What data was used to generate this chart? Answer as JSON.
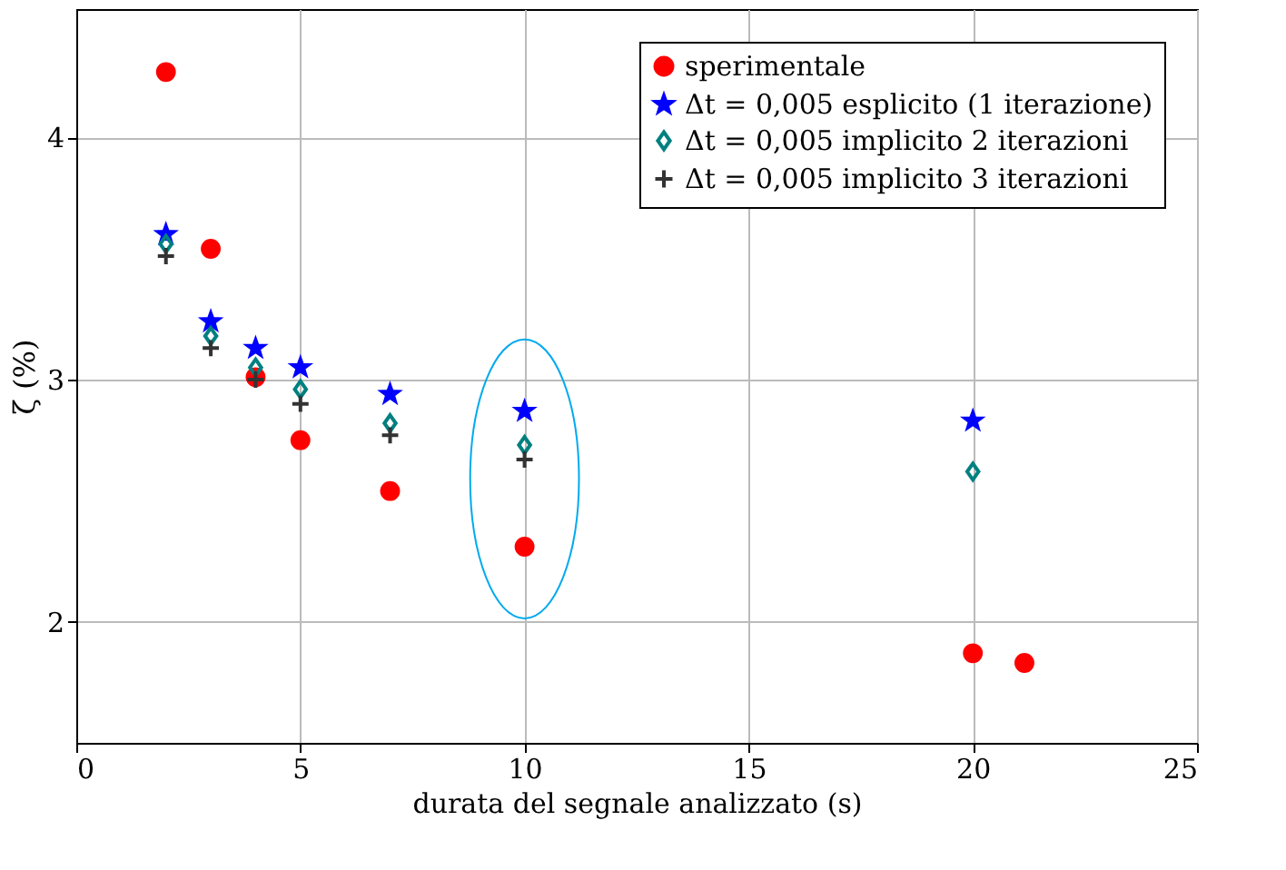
{
  "chart_data": {
    "type": "scatter",
    "xlabel": "durata del segnale analizzato (s)",
    "ylabel": "ζ (%)",
    "xlim": [
      0,
      25
    ],
    "xticks": [
      0,
      5,
      10,
      15,
      20,
      25
    ],
    "ylim": [
      1.5,
      4.53
    ],
    "yticks": [
      2,
      3,
      4
    ],
    "grid": true,
    "legend": "top right",
    "series": [
      {
        "name": "sperimentale",
        "color": "#ff0000",
        "marker": "circle",
        "x": [
          2,
          3,
          4,
          5,
          7,
          10,
          20,
          21.15
        ],
        "values": [
          4.27,
          3.54,
          3.01,
          2.75,
          2.54,
          2.31,
          1.87,
          1.83
        ]
      },
      {
        "name": "Δt = 0,005 esplicito (1 iterazione)",
        "color": "#0000ff",
        "marker": "star",
        "x": [
          2,
          3,
          4,
          5,
          7,
          10,
          20
        ],
        "values": [
          3.6,
          3.24,
          3.13,
          3.05,
          2.94,
          2.87,
          2.83
        ]
      },
      {
        "name": "Δt = 0,005 implicito 2 iterazioni",
        "color": "#008080",
        "marker": "diamond",
        "x": [
          2,
          3,
          4,
          5,
          7,
          10,
          20
        ],
        "values": [
          3.56,
          3.18,
          3.05,
          2.96,
          2.82,
          2.73,
          2.62
        ]
      },
      {
        "name": "Δt = 0,005 implicito 3 iterazioni",
        "color": "#333333",
        "marker": "cross",
        "x": [
          2,
          3,
          4,
          5,
          7,
          10
        ],
        "values": [
          3.51,
          3.13,
          3.0,
          2.9,
          2.77,
          2.67
        ]
      }
    ]
  }
}
